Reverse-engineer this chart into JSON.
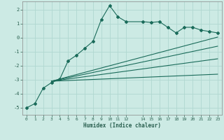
{
  "title": "",
  "xlabel": "Humidex (Indice chaleur)",
  "bg_color": "#cceae4",
  "grid_color": "#b0d8d0",
  "line_color": "#1a6b5a",
  "xlim": [
    -0.5,
    23.5
  ],
  "ylim": [
    -5.5,
    2.6
  ],
  "xticks": [
    0,
    1,
    2,
    3,
    4,
    5,
    6,
    7,
    8,
    9,
    10,
    11,
    12,
    14,
    15,
    16,
    17,
    18,
    19,
    20,
    21,
    22,
    23
  ],
  "yticks": [
    -5,
    -4,
    -3,
    -2,
    -1,
    0,
    1,
    2
  ],
  "main_x": [
    0,
    1,
    2,
    3,
    4,
    5,
    6,
    7,
    8,
    9,
    10,
    11,
    12,
    14,
    15,
    16,
    17,
    18,
    19,
    20,
    21,
    22,
    23
  ],
  "main_y": [
    -5.0,
    -4.7,
    -3.6,
    -3.2,
    -2.95,
    -1.65,
    -1.25,
    -0.75,
    -0.25,
    1.3,
    2.3,
    1.5,
    1.15,
    1.15,
    1.1,
    1.15,
    0.75,
    0.35,
    0.75,
    0.75,
    0.55,
    0.45,
    0.35
  ],
  "trend1_x": [
    3,
    23
  ],
  "trend1_y": [
    -3.1,
    0.05
  ],
  "trend2_x": [
    3,
    23
  ],
  "trend2_y": [
    -3.1,
    -0.6
  ],
  "trend3_x": [
    3,
    23
  ],
  "trend3_y": [
    -3.1,
    -1.5
  ],
  "trend4_x": [
    3,
    23
  ],
  "trend4_y": [
    -3.1,
    -2.6
  ]
}
